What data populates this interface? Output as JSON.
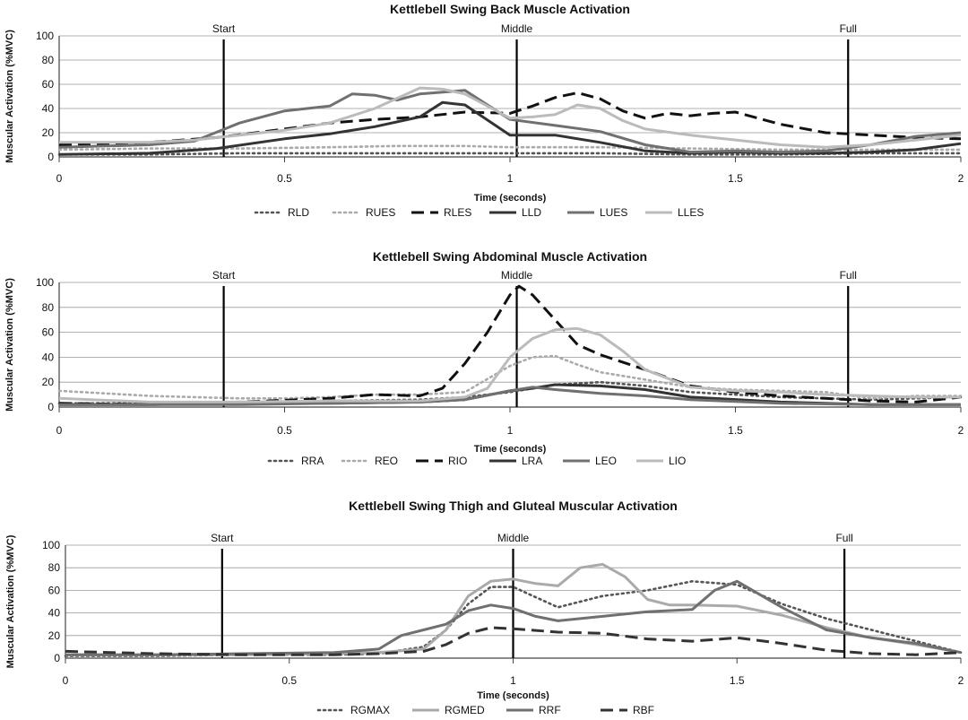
{
  "chart_data": [
    {
      "type": "line",
      "title": "Kettlebell Swing Back Muscle Activation",
      "xlabel": "Time (seconds)",
      "ylabel": "Muscular Activation (%MVC)",
      "xlim": [
        0,
        2
      ],
      "ylim": [
        0,
        100
      ],
      "xticks": [
        "0",
        "0.5",
        "1",
        "1.5",
        "2"
      ],
      "yticks": [
        "0",
        "20",
        "40",
        "60",
        "80",
        "100"
      ],
      "phases": [
        {
          "label": "Start",
          "x": 0.365
        },
        {
          "label": "Middle",
          "x": 1.015
        },
        {
          "label": "Full",
          "x": 1.75
        }
      ],
      "series": [
        {
          "name": "RLD",
          "color": "#555555",
          "style": "dotted",
          "x": [
            0,
            0.2,
            0.4,
            0.6,
            0.8,
            1.0,
            1.2,
            1.4,
            1.6,
            1.8,
            2.0
          ],
          "y": [
            2,
            2,
            3,
            3,
            3,
            3,
            3,
            2,
            2,
            3,
            3
          ]
        },
        {
          "name": "RUES",
          "color": "#aaaaaa",
          "style": "dotted",
          "x": [
            0,
            0.2,
            0.4,
            0.6,
            0.75,
            0.9,
            1.0,
            1.2,
            1.4,
            1.6,
            1.8,
            2.0
          ],
          "y": [
            6,
            7,
            7,
            8,
            9,
            9,
            8,
            8,
            7,
            6,
            6,
            6
          ]
        },
        {
          "name": "RLES",
          "color": "#111111",
          "style": "dashed",
          "x": [
            0,
            0.2,
            0.35,
            0.5,
            0.6,
            0.7,
            0.8,
            0.9,
            1.0,
            1.05,
            1.1,
            1.15,
            1.2,
            1.25,
            1.3,
            1.35,
            1.4,
            1.45,
            1.5,
            1.6,
            1.7,
            1.8,
            1.9,
            2.0
          ],
          "y": [
            10,
            12,
            16,
            23,
            28,
            31,
            33,
            37,
            36,
            42,
            49,
            53,
            48,
            38,
            32,
            36,
            34,
            36,
            37,
            27,
            20,
            18,
            16,
            15
          ]
        },
        {
          "name": "LLD",
          "color": "#333333",
          "style": "solid",
          "x": [
            0,
            0.2,
            0.35,
            0.5,
            0.6,
            0.7,
            0.8,
            0.85,
            0.9,
            1.0,
            1.1,
            1.2,
            1.3,
            1.4,
            1.5,
            1.6,
            1.7,
            1.8,
            1.9,
            2.0
          ],
          "y": [
            2,
            3,
            7,
            15,
            19,
            25,
            33,
            45,
            43,
            18,
            18,
            12,
            5,
            3,
            4,
            3,
            3,
            4,
            6,
            11
          ]
        },
        {
          "name": "LUES",
          "color": "#707070",
          "style": "solid",
          "x": [
            0,
            0.2,
            0.3,
            0.4,
            0.5,
            0.6,
            0.65,
            0.7,
            0.75,
            0.8,
            0.9,
            1.0,
            1.1,
            1.2,
            1.3,
            1.4,
            1.5,
            1.6,
            1.7,
            1.8,
            1.9,
            2.0
          ],
          "y": [
            8,
            10,
            13,
            28,
            38,
            42,
            52,
            51,
            47,
            52,
            55,
            31,
            26,
            21,
            10,
            4,
            5,
            4,
            5,
            10,
            17,
            20
          ]
        },
        {
          "name": "LLES",
          "color": "#bbbbbb",
          "style": "solid",
          "x": [
            0,
            0.2,
            0.3,
            0.4,
            0.5,
            0.6,
            0.7,
            0.8,
            0.85,
            0.9,
            1.0,
            1.05,
            1.1,
            1.15,
            1.2,
            1.25,
            1.3,
            1.4,
            1.5,
            1.6,
            1.7,
            1.8,
            1.9,
            2.0
          ],
          "y": [
            12,
            12,
            14,
            18,
            22,
            28,
            40,
            57,
            56,
            52,
            32,
            33,
            35,
            43,
            40,
            30,
            23,
            18,
            14,
            10,
            8,
            10,
            14,
            18
          ]
        }
      ]
    },
    {
      "type": "line",
      "title": "Kettlebell Swing Abdominal Muscle Activation",
      "xlabel": "Time (seconds)",
      "ylabel": "Muscular Activation (%MVC)",
      "xlim": [
        0,
        2
      ],
      "ylim": [
        0,
        100
      ],
      "xticks": [
        "0",
        "0.5",
        "1",
        "1.5",
        "2"
      ],
      "yticks": [
        "0",
        "20",
        "40",
        "60",
        "80",
        "100"
      ],
      "phases": [
        {
          "label": "Start",
          "x": 0.365
        },
        {
          "label": "Middle",
          "x": 1.015
        },
        {
          "label": "Full",
          "x": 1.75
        }
      ],
      "series": [
        {
          "name": "RRA",
          "color": "#555555",
          "style": "dotted",
          "x": [
            0,
            0.2,
            0.4,
            0.6,
            0.8,
            0.9,
            1.0,
            1.1,
            1.2,
            1.3,
            1.4,
            1.6,
            1.8,
            2.0
          ],
          "y": [
            3,
            3,
            4,
            5,
            6,
            8,
            12,
            18,
            20,
            17,
            12,
            8,
            6,
            8
          ]
        },
        {
          "name": "REO",
          "color": "#aaaaaa",
          "style": "dotted",
          "x": [
            0,
            0.1,
            0.2,
            0.3,
            0.4,
            0.5,
            0.6,
            0.7,
            0.8,
            0.9,
            1.0,
            1.05,
            1.1,
            1.15,
            1.2,
            1.3,
            1.4,
            1.5,
            1.6,
            1.7,
            1.8,
            1.9,
            2.0
          ],
          "y": [
            13,
            11,
            9,
            8,
            7,
            7,
            8,
            10,
            10,
            12,
            33,
            40,
            41,
            34,
            28,
            22,
            16,
            14,
            13,
            12,
            7,
            9,
            9
          ]
        },
        {
          "name": "RIO",
          "color": "#111111",
          "style": "dashed",
          "x": [
            0,
            0.2,
            0.4,
            0.6,
            0.7,
            0.8,
            0.85,
            0.9,
            0.95,
            1.0,
            1.02,
            1.05,
            1.1,
            1.15,
            1.2,
            1.3,
            1.4,
            1.5,
            1.6,
            1.7,
            1.8,
            1.9,
            2.0
          ],
          "y": [
            3,
            2,
            4,
            7,
            10,
            9,
            15,
            35,
            60,
            90,
            97,
            90,
            70,
            50,
            42,
            30,
            17,
            12,
            9,
            7,
            5,
            4,
            8
          ]
        },
        {
          "name": "LRA",
          "color": "#333333",
          "style": "solid",
          "x": [
            0,
            0.2,
            0.4,
            0.6,
            0.8,
            0.9,
            1.0,
            1.05,
            1.1,
            1.2,
            1.3,
            1.4,
            1.6,
            1.8,
            2.0
          ],
          "y": [
            2,
            2,
            3,
            3,
            4,
            6,
            13,
            15,
            18,
            17,
            14,
            8,
            4,
            2,
            2
          ]
        },
        {
          "name": "LEO",
          "color": "#707070",
          "style": "solid",
          "x": [
            0,
            0.2,
            0.4,
            0.6,
            0.8,
            0.9,
            1.0,
            1.05,
            1.1,
            1.2,
            1.3,
            1.4,
            1.6,
            1.8,
            2.0
          ],
          "y": [
            2,
            2,
            2,
            3,
            4,
            6,
            13,
            16,
            14,
            11,
            9,
            6,
            3,
            2,
            2
          ]
        },
        {
          "name": "LIO",
          "color": "#bbbbbb",
          "style": "solid",
          "x": [
            0,
            0.2,
            0.4,
            0.6,
            0.8,
            0.9,
            0.95,
            1.0,
            1.05,
            1.1,
            1.15,
            1.2,
            1.25,
            1.3,
            1.4,
            1.5,
            1.6,
            1.7,
            1.8,
            1.9,
            2.0
          ],
          "y": [
            7,
            4,
            4,
            5,
            5,
            8,
            15,
            40,
            55,
            62,
            63,
            58,
            45,
            30,
            16,
            13,
            12,
            10,
            9,
            8,
            8
          ]
        }
      ]
    },
    {
      "type": "line",
      "title": "Kettlebell Swing Thigh and Gluteal Muscular Activation",
      "xlabel": "Time (seconds)",
      "ylabel": "Muscular Activation (%MVC)",
      "xlim": [
        0,
        2
      ],
      "ylim": [
        0,
        100
      ],
      "xticks": [
        "0",
        "0.5",
        "1",
        "1.5",
        "2"
      ],
      "yticks": [
        "0",
        "20",
        "40",
        "60",
        "80",
        "100"
      ],
      "phases": [
        {
          "label": "Start",
          "x": 0.35
        },
        {
          "label": "Middle",
          "x": 1.0
        },
        {
          "label": "Full",
          "x": 1.74
        }
      ],
      "series": [
        {
          "name": "RGMAX",
          "color": "#555555",
          "style": "dotted",
          "x": [
            0,
            0.2,
            0.4,
            0.6,
            0.7,
            0.8,
            0.85,
            0.9,
            0.95,
            1.0,
            1.1,
            1.2,
            1.3,
            1.4,
            1.5,
            1.6,
            1.7,
            1.8,
            1.9,
            2.0
          ],
          "y": [
            2,
            2,
            3,
            3,
            4,
            10,
            25,
            48,
            63,
            63,
            45,
            55,
            60,
            68,
            65,
            48,
            35,
            25,
            15,
            5
          ]
        },
        {
          "name": "RGMED",
          "color": "#aaaaaa",
          "style": "solid",
          "x": [
            0,
            0.2,
            0.4,
            0.6,
            0.7,
            0.8,
            0.85,
            0.9,
            0.95,
            1.0,
            1.05,
            1.1,
            1.15,
            1.2,
            1.25,
            1.3,
            1.35,
            1.4,
            1.5,
            1.6,
            1.7,
            1.8,
            1.9,
            2.0
          ],
          "y": [
            3,
            3,
            3,
            4,
            5,
            8,
            25,
            55,
            68,
            70,
            66,
            64,
            80,
            83,
            72,
            52,
            47,
            47,
            46,
            38,
            27,
            18,
            12,
            5
          ]
        },
        {
          "name": "RRF",
          "color": "#707070",
          "style": "solid",
          "x": [
            0,
            0.2,
            0.4,
            0.6,
            0.7,
            0.75,
            0.8,
            0.85,
            0.9,
            0.95,
            1.0,
            1.05,
            1.1,
            1.2,
            1.3,
            1.4,
            1.45,
            1.5,
            1.6,
            1.7,
            1.8,
            1.9,
            2.0
          ],
          "y": [
            3,
            3,
            4,
            5,
            8,
            20,
            25,
            30,
            42,
            47,
            44,
            37,
            33,
            37,
            41,
            43,
            60,
            68,
            45,
            25,
            18,
            13,
            5
          ]
        },
        {
          "name": "RBF",
          "color": "#333333",
          "style": "dashed",
          "x": [
            0,
            0.2,
            0.4,
            0.6,
            0.7,
            0.8,
            0.85,
            0.9,
            0.95,
            1.0,
            1.1,
            1.2,
            1.3,
            1.4,
            1.5,
            1.6,
            1.7,
            1.8,
            1.9,
            2.0
          ],
          "y": [
            6,
            4,
            3,
            3,
            4,
            6,
            12,
            22,
            27,
            26,
            23,
            22,
            17,
            15,
            18,
            13,
            7,
            4,
            3,
            5
          ]
        }
      ]
    }
  ]
}
